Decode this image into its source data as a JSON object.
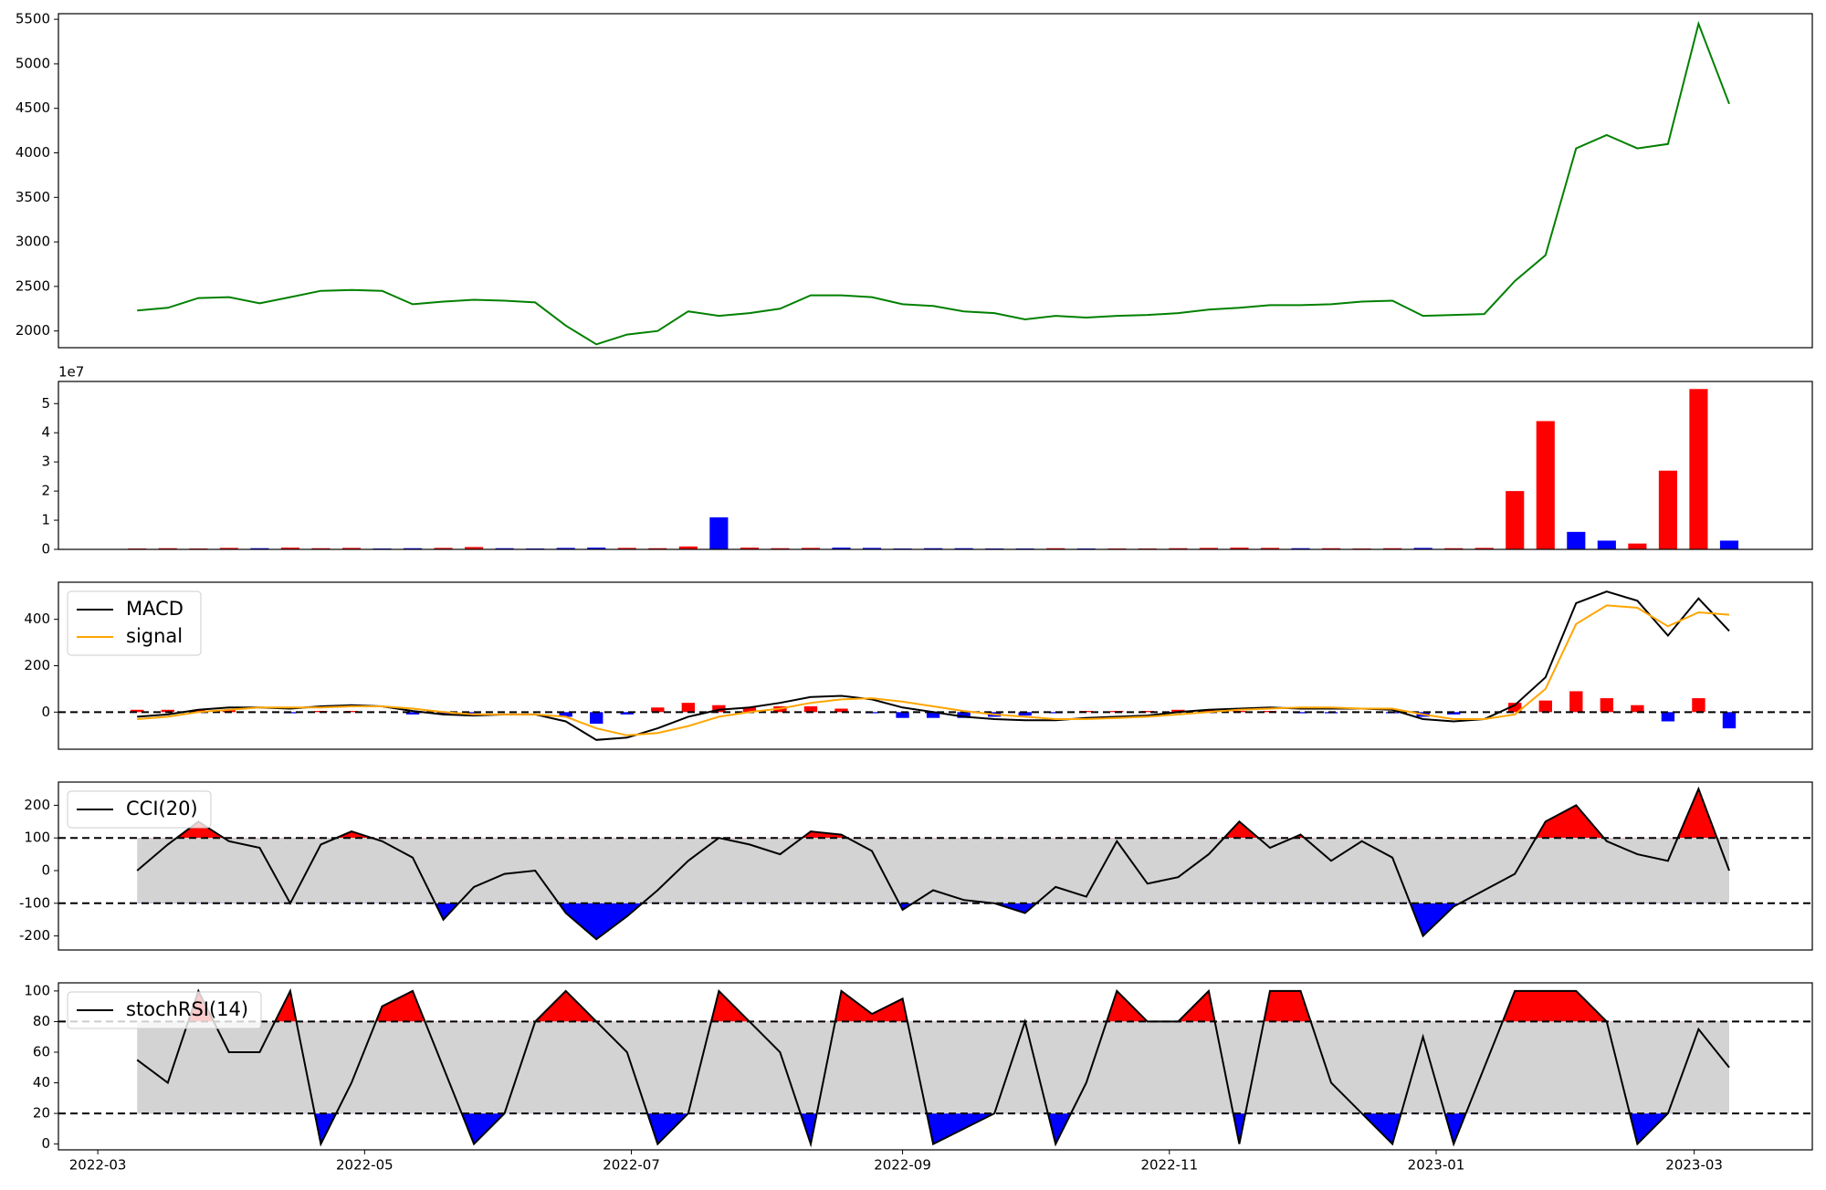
{
  "chart_data": {
    "x": [
      "2022-03-10",
      "2022-03-17",
      "2022-03-24",
      "2022-03-31",
      "2022-04-07",
      "2022-04-14",
      "2022-04-21",
      "2022-04-28",
      "2022-05-05",
      "2022-05-12",
      "2022-05-19",
      "2022-05-26",
      "2022-06-02",
      "2022-06-09",
      "2022-06-16",
      "2022-06-23",
      "2022-06-30",
      "2022-07-07",
      "2022-07-14",
      "2022-07-21",
      "2022-07-28",
      "2022-08-04",
      "2022-08-11",
      "2022-08-18",
      "2022-08-25",
      "2022-09-01",
      "2022-09-08",
      "2022-09-15",
      "2022-09-22",
      "2022-09-29",
      "2022-10-06",
      "2022-10-13",
      "2022-10-20",
      "2022-10-27",
      "2022-11-03",
      "2022-11-10",
      "2022-11-17",
      "2022-11-24",
      "2022-12-01",
      "2022-12-08",
      "2022-12-15",
      "2022-12-22",
      "2022-12-29",
      "2023-01-05",
      "2023-01-12",
      "2023-01-19",
      "2023-01-26",
      "2023-02-02",
      "2023-02-09",
      "2023-02-16",
      "2023-02-23",
      "2023-03-02",
      "2023-03-09"
    ],
    "xlim": [
      "2022-02-20",
      "2023-03-28"
    ],
    "xticks": [
      "2022-03",
      "2022-05",
      "2022-07",
      "2022-09",
      "2022-11",
      "2023-01",
      "2023-03"
    ],
    "panels": [
      {
        "type": "line",
        "ylim": [
          1812,
          5563
        ],
        "yticks": [
          2000,
          2500,
          3000,
          3500,
          4000,
          4500,
          5000,
          5500
        ],
        "series": [
          {
            "color": "#008000",
            "values": [
              2230,
              2260,
              2370,
              2380,
              2310,
              2380,
              2450,
              2460,
              2450,
              2300,
              2330,
              2350,
              2340,
              2320,
              2060,
              1850,
              1960,
              2000,
              2220,
              2170,
              2200,
              2250,
              2400,
              2400,
              2380,
              2300,
              2280,
              2220,
              2200,
              2130,
              2170,
              2150,
              2170,
              2180,
              2200,
              2240,
              2260,
              2290,
              2290,
              2300,
              2330,
              2340,
              2170,
              2180,
              2190,
              2560,
              2850,
              4050,
              4200,
              4050,
              4100,
              5450,
              4550
            ]
          }
        ]
      },
      {
        "type": "bar",
        "ylim": [
          0,
          5.76
        ],
        "yticks": [
          0,
          1,
          2,
          3,
          4,
          5
        ],
        "y_offset_label": "1e7",
        "values": [
          0.03,
          0.04,
          0.03,
          0.05,
          0.04,
          0.06,
          0.04,
          0.05,
          0.03,
          0.04,
          0.05,
          0.08,
          0.04,
          0.03,
          0.05,
          0.06,
          0.05,
          0.04,
          0.1,
          1.1,
          0.06,
          0.04,
          0.05,
          0.06,
          0.05,
          0.03,
          0.04,
          0.04,
          0.03,
          0.03,
          0.04,
          0.03,
          0.03,
          0.03,
          0.04,
          0.05,
          0.06,
          0.05,
          0.04,
          0.04,
          0.03,
          0.04,
          0.05,
          0.04,
          0.05,
          2.0,
          4.4,
          0.6,
          0.3,
          0.2,
          2.7,
          5.5,
          0.3
        ],
        "colors": [
          "red",
          "red",
          "red",
          "red",
          "blue",
          "red",
          "red",
          "red",
          "blue",
          "blue",
          "red",
          "red",
          "blue",
          "blue",
          "blue",
          "blue",
          "red",
          "red",
          "red",
          "blue",
          "red",
          "red",
          "red",
          "blue",
          "blue",
          "blue",
          "blue",
          "blue",
          "blue",
          "blue",
          "red",
          "blue",
          "red",
          "red",
          "red",
          "red",
          "red",
          "red",
          "blue",
          "red",
          "red",
          "red",
          "blue",
          "red",
          "red",
          "red",
          "red",
          "blue",
          "blue",
          "red",
          "red",
          "red",
          "blue"
        ]
      },
      {
        "type": "combo",
        "ylim": [
          -160,
          560
        ],
        "yticks": [
          0,
          200,
          400
        ],
        "hline": 0,
        "legend": "upper left",
        "histogram": {
          "up_color": "red",
          "down_color": "blue",
          "values": [
            10,
            10,
            10,
            10,
            0,
            -5,
            5,
            5,
            0,
            -10,
            -10,
            -5,
            0,
            0,
            -20,
            -50,
            -10,
            20,
            40,
            30,
            20,
            25,
            25,
            15,
            -5,
            -25,
            -25,
            -25,
            -20,
            -15,
            -5,
            5,
            5,
            5,
            10,
            10,
            5,
            5,
            -5,
            -5,
            0,
            -5,
            -20,
            -10,
            0,
            40,
            50,
            90,
            60,
            30,
            -40,
            60,
            -70
          ]
        },
        "series": [
          {
            "name": "MACD",
            "color": "#000000",
            "values": [
              -20,
              -10,
              10,
              20,
              20,
              15,
              25,
              30,
              25,
              5,
              -10,
              -15,
              -10,
              -10,
              -40,
              -120,
              -110,
              -70,
              -20,
              10,
              20,
              40,
              65,
              70,
              55,
              20,
              0,
              -20,
              -30,
              -35,
              -35,
              -25,
              -20,
              -15,
              0,
              10,
              15,
              20,
              15,
              15,
              15,
              10,
              -30,
              -40,
              -30,
              30,
              150,
              470,
              520,
              480,
              330,
              490,
              350
            ]
          },
          {
            "name": "signal",
            "color": "#ffa500",
            "values": [
              -30,
              -20,
              0,
              10,
              20,
              20,
              20,
              25,
              25,
              15,
              0,
              -10,
              -10,
              -10,
              -20,
              -70,
              -100,
              -90,
              -60,
              -20,
              0,
              15,
              40,
              55,
              60,
              45,
              25,
              5,
              -10,
              -20,
              -30,
              -30,
              -25,
              -20,
              -10,
              0,
              10,
              15,
              20,
              20,
              15,
              15,
              -10,
              -30,
              -30,
              -10,
              100,
              380,
              460,
              450,
              370,
              430,
              420
            ]
          }
        ]
      },
      {
        "type": "band",
        "ylim": [
          -243,
          271
        ],
        "yticks": [
          -200,
          -100,
          0,
          100,
          200
        ],
        "thresholds": [
          100,
          -100
        ],
        "band_color": "#d3d3d3",
        "above_color": "red",
        "below_color": "blue",
        "legend": "upper left",
        "series": [
          {
            "name": "CCI(20)",
            "color": "#000000",
            "values": [
              0,
              80,
              150,
              90,
              70,
              -100,
              80,
              120,
              90,
              40,
              -150,
              -50,
              -10,
              0,
              -130,
              -210,
              -140,
              -60,
              30,
              100,
              80,
              50,
              120,
              110,
              60,
              -120,
              -60,
              -90,
              -100,
              -130,
              -50,
              -80,
              90,
              -40,
              -20,
              50,
              150,
              70,
              110,
              30,
              90,
              40,
              -200,
              -110,
              -60,
              -10,
              150,
              200,
              90,
              50,
              30,
              250,
              0
            ]
          }
        ]
      },
      {
        "type": "band",
        "ylim": [
          -3.8,
          105.3
        ],
        "yticks": [
          0,
          20,
          40,
          60,
          80,
          100
        ],
        "thresholds": [
          80,
          20
        ],
        "band_color": "#d3d3d3",
        "above_color": "red",
        "below_color": "blue",
        "legend": "upper left",
        "series": [
          {
            "name": "stochRSI(14)",
            "color": "#000000",
            "values": [
              55,
              40,
              100,
              60,
              60,
              100,
              0,
              40,
              90,
              100,
              50,
              0,
              20,
              80,
              100,
              80,
              60,
              0,
              20,
              100,
              80,
              60,
              0,
              100,
              85,
              95,
              0,
              10,
              20,
              80,
              0,
              40,
              100,
              80,
              80,
              100,
              0,
              100,
              100,
              40,
              20,
              0,
              70,
              0,
              50,
              100,
              100,
              100,
              80,
              0,
              20,
              75,
              50
            ]
          }
        ]
      }
    ]
  }
}
